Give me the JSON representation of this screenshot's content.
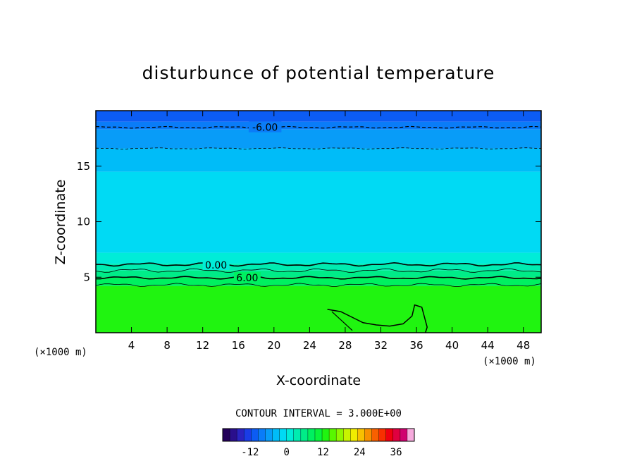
{
  "chart_data": {
    "type": "heatmap",
    "title": "disturbunce of potential temperature",
    "xlabel": "X-coordinate",
    "ylabel": "Z-coordinate",
    "x_unit": "(×1000 m)",
    "y_unit": "(×1000 m)",
    "xlim": [
      0,
      50
    ],
    "ylim": [
      0,
      20
    ],
    "x_ticks": [
      4,
      8,
      12,
      16,
      20,
      24,
      28,
      32,
      36,
      40,
      44,
      48
    ],
    "y_ticks": [
      5,
      10,
      15
    ],
    "contour_interval_label": "CONTOUR INTERVAL = 3.000E+00",
    "contour_labels": [
      "-6.00",
      "0.00",
      "6.00"
    ],
    "colorbar": {
      "range": [
        -21,
        42
      ],
      "ticks": [
        "-12",
        "0",
        "12",
        "24",
        "36"
      ],
      "colors": [
        "#23005a",
        "#2a0f8c",
        "#2a23c0",
        "#1a3ce6",
        "#0c5cf4",
        "#0a7cf8",
        "#089cf8",
        "#00bcf8",
        "#00daf4",
        "#00ecd8",
        "#00ecb0",
        "#00ec88",
        "#00f060",
        "#08f43c",
        "#20f410",
        "#58f800",
        "#90f800",
        "#c8f400",
        "#f0ec00",
        "#f8c000",
        "#f89000",
        "#f86000",
        "#f83000",
        "#f00010",
        "#e00040",
        "#d00070",
        "#f6aadd"
      ]
    },
    "layers": [
      {
        "z_top": 20.0,
        "z_bottom": 19.0,
        "value": -9,
        "color": "#0c5cf4"
      },
      {
        "z_top": 19.0,
        "z_bottom": 18.3,
        "value": -8,
        "color": "#0a7cf8"
      },
      {
        "z_top": 18.3,
        "z_bottom": 16.6,
        "value": -6,
        "color": "#089cf8"
      },
      {
        "z_top": 16.6,
        "z_bottom": 14.5,
        "value": -4,
        "color": "#00bcf8"
      },
      {
        "z_top": 14.5,
        "z_bottom": 7.2,
        "value": -2,
        "color": "#00daf4"
      },
      {
        "z_top": 7.2,
        "z_bottom": 6.2,
        "value": -1,
        "color": "#00ecd8"
      },
      {
        "z_top": 6.2,
        "z_bottom": 5.6,
        "value": 1,
        "color": "#00ecb0"
      },
      {
        "z_top": 5.6,
        "z_bottom": 5.0,
        "value": 3,
        "color": "#00ec88"
      },
      {
        "z_top": 5.0,
        "z_bottom": 4.2,
        "value": 5,
        "color": "#00f060"
      },
      {
        "z_top": 4.2,
        "z_bottom": 0.0,
        "value": 7,
        "color": "#20f410"
      }
    ]
  }
}
